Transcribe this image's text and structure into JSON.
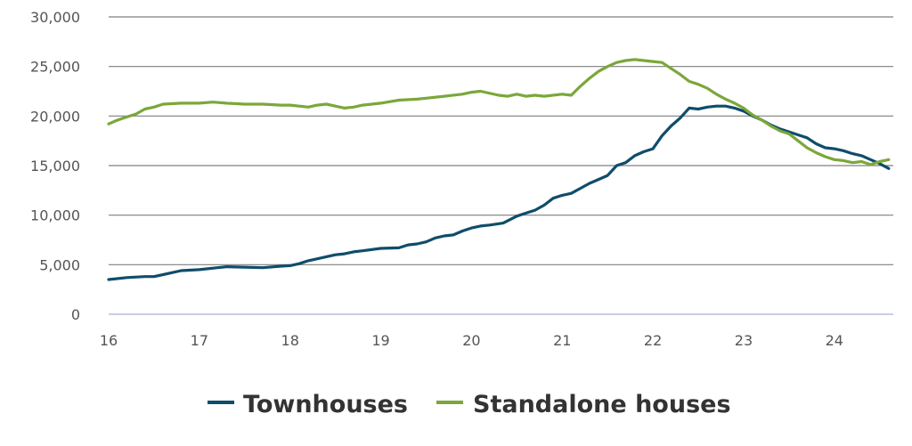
{
  "chart_data": {
    "type": "line",
    "title": "",
    "xlabel": "",
    "ylabel": "",
    "xlim": [
      16,
      24.65
    ],
    "ylim": [
      0,
      30000
    ],
    "x_ticks": [
      16,
      17,
      18,
      19,
      20,
      21,
      22,
      23,
      24
    ],
    "x_tick_labels": [
      "16",
      "17",
      "18",
      "19",
      "20",
      "21",
      "22",
      "23",
      "24"
    ],
    "y_ticks": [
      0,
      5000,
      10000,
      15000,
      20000,
      25000,
      30000
    ],
    "y_tick_labels": [
      "0",
      "5,000",
      "10,000",
      "15,000",
      "20,000",
      "25,000",
      "30,000"
    ],
    "grid": true,
    "legend_position": "bottom",
    "series": [
      {
        "name": "Townhouses",
        "color": "#0f4d6b",
        "x": [
          16.0,
          16.2,
          16.4,
          16.5,
          16.6,
          16.8,
          17.0,
          17.2,
          17.3,
          17.5,
          17.7,
          17.9,
          18.0,
          18.1,
          18.2,
          18.3,
          18.4,
          18.5,
          18.6,
          18.7,
          18.8,
          19.0,
          19.2,
          19.3,
          19.4,
          19.5,
          19.6,
          19.7,
          19.8,
          19.9,
          20.0,
          20.1,
          20.2,
          20.35,
          20.5,
          20.6,
          20.7,
          20.8,
          20.9,
          21.0,
          21.1,
          21.2,
          21.3,
          21.4,
          21.5,
          21.6,
          21.7,
          21.8,
          21.9,
          22.0,
          22.1,
          22.2,
          22.3,
          22.4,
          22.5,
          22.6,
          22.7,
          22.8,
          22.9,
          23.0,
          23.1,
          23.2,
          23.3,
          23.4,
          23.5,
          23.6,
          23.7,
          23.8,
          23.9,
          24.0,
          24.1,
          24.2,
          24.3,
          24.4,
          24.5,
          24.6
        ],
        "y": [
          3500,
          3700,
          3800,
          3800,
          4000,
          4400,
          4500,
          4700,
          4800,
          4750,
          4700,
          4850,
          4900,
          5100,
          5400,
          5600,
          5800,
          6000,
          6100,
          6300,
          6400,
          6650,
          6700,
          7000,
          7100,
          7300,
          7700,
          7900,
          8000,
          8400,
          8700,
          8900,
          9000,
          9200,
          9900,
          10200,
          10500,
          11000,
          11700,
          12000,
          12200,
          12700,
          13200,
          13600,
          14000,
          15000,
          15300,
          16000,
          16400,
          16700,
          18000,
          19000,
          19800,
          20800,
          20700,
          20900,
          21000,
          21000,
          20800,
          20500,
          20000,
          19600,
          19100,
          18700,
          18400,
          18100,
          17800,
          17200,
          16800,
          16700,
          16500,
          16200,
          16000,
          15600,
          15200,
          14700
        ]
      },
      {
        "name": "Standalone houses",
        "color": "#7ba73a",
        "x": [
          16.0,
          16.1,
          16.2,
          16.3,
          16.4,
          16.5,
          16.6,
          16.8,
          17.0,
          17.15,
          17.3,
          17.5,
          17.7,
          17.9,
          18.0,
          18.1,
          18.2,
          18.3,
          18.4,
          18.5,
          18.6,
          18.7,
          18.8,
          19.0,
          19.2,
          19.4,
          19.5,
          19.7,
          19.9,
          20.0,
          20.1,
          20.3,
          20.4,
          20.5,
          20.6,
          20.7,
          20.8,
          21.0,
          21.1,
          21.2,
          21.3,
          21.4,
          21.5,
          21.6,
          21.7,
          21.8,
          21.9,
          22.0,
          22.1,
          22.2,
          22.3,
          22.4,
          22.5,
          22.6,
          22.7,
          22.8,
          22.9,
          23.0,
          23.1,
          23.2,
          23.3,
          23.4,
          23.5,
          23.6,
          23.7,
          23.8,
          23.9,
          24.0,
          24.1,
          24.2,
          24.3,
          24.4,
          24.5,
          24.6
        ],
        "y": [
          19200,
          19600,
          19900,
          20200,
          20700,
          20900,
          21200,
          21300,
          21300,
          21400,
          21300,
          21200,
          21200,
          21100,
          21100,
          21000,
          20900,
          21100,
          21200,
          21000,
          20800,
          20900,
          21100,
          21300,
          21600,
          21700,
          21800,
          22000,
          22200,
          22400,
          22500,
          22100,
          22000,
          22200,
          22000,
          22100,
          22000,
          22200,
          22100,
          23000,
          23800,
          24500,
          25000,
          25400,
          25600,
          25700,
          25600,
          25500,
          25400,
          24800,
          24200,
          23500,
          23200,
          22800,
          22200,
          21700,
          21300,
          20800,
          20100,
          19600,
          19000,
          18500,
          18200,
          17500,
          16800,
          16300,
          15900,
          15600,
          15500,
          15300,
          15400,
          15100,
          15400,
          15600
        ]
      }
    ]
  }
}
